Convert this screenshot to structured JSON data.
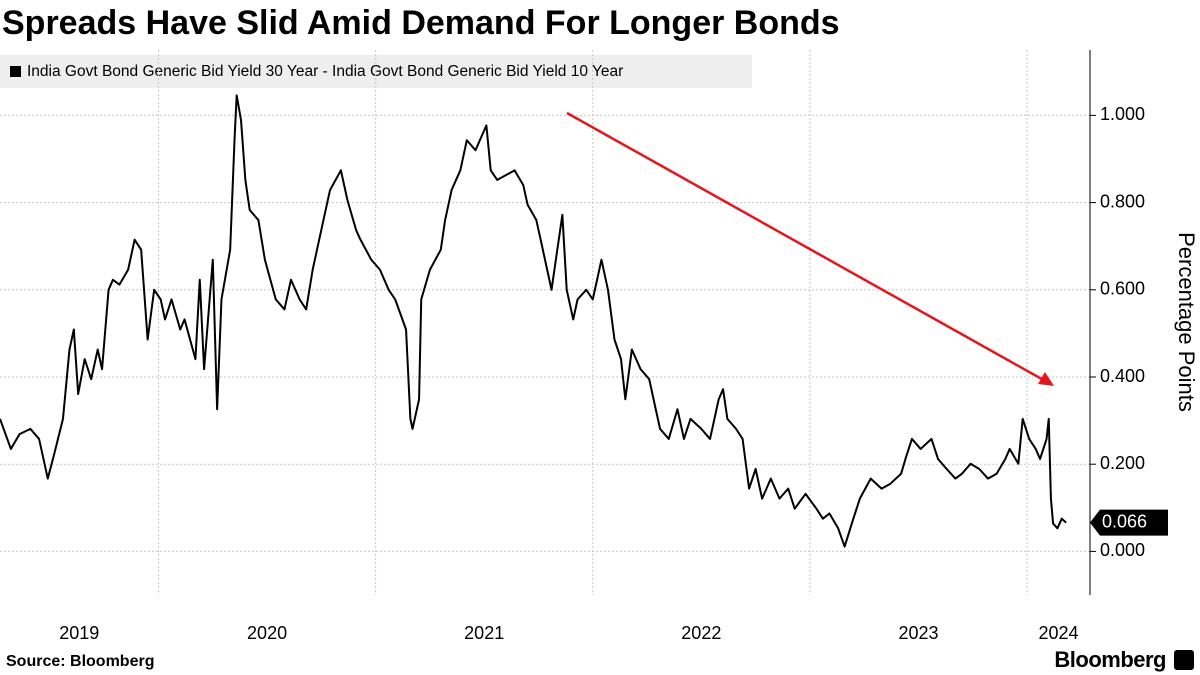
{
  "chart_data": {
    "type": "line",
    "title": "Spreads Have Slid Amid Demand For Longer Bonds",
    "y_label": "Percentage Points",
    "source": "Source: Bloomberg",
    "brand": "Bloomberg",
    "legend": "top-left",
    "grid": true,
    "xlim": [
      2019.27,
      2024.29
    ],
    "xticks": [
      2019,
      2020,
      2021,
      2022,
      2023,
      2024
    ],
    "ylim": [
      -0.1,
      1.15
    ],
    "yticks": [
      {
        "value": 0,
        "label": "0.000"
      },
      {
        "value": 0.2,
        "label": "0.200"
      },
      {
        "value": 0.4,
        "label": "0.400"
      },
      {
        "value": 0.6,
        "label": "0.600"
      },
      {
        "value": 0.8,
        "label": "0.800"
      },
      {
        "value": 1,
        "label": "1.000"
      }
    ],
    "x": [
      2019.27,
      2019.32,
      2019.36,
      2019.41,
      2019.45,
      2019.49,
      2019.52,
      2019.56,
      2019.59,
      2019.61,
      2019.63,
      2019.66,
      2019.69,
      2019.72,
      2019.74,
      2019.77,
      2019.79,
      2019.82,
      2019.86,
      2019.89,
      2019.92,
      2019.95,
      2019.98,
      2020.01,
      2020.03,
      2020.06,
      2020.1,
      2020.12,
      2020.17,
      2020.19,
      2020.21,
      2020.25,
      2020.27,
      2020.29,
      2020.33,
      2020.35,
      2020.36,
      2020.38,
      2020.4,
      2020.42,
      2020.46,
      2020.49,
      2020.54,
      2020.58,
      2020.61,
      2020.65,
      2020.68,
      2020.71,
      2020.74,
      2020.79,
      2020.84,
      2020.87,
      2020.91,
      2020.93,
      2020.98,
      2021.02,
      2021.06,
      2021.09,
      2021.14,
      2021.16,
      2021.17,
      2021.2,
      2021.21,
      2021.25,
      2021.3,
      2021.32,
      2021.35,
      2021.39,
      2021.42,
      2021.46,
      2021.48,
      2021.51,
      2021.53,
      2021.56,
      2021.6,
      2021.64,
      2021.68,
      2021.7,
      2021.74,
      2021.76,
      2021.8,
      2021.81,
      2021.83,
      2021.86,
      2021.88,
      2021.91,
      2021.93,
      2021.97,
      2022.0,
      2022.03,
      2022.04,
      2022.07,
      2022.1,
      2022.13,
      2022.15,
      2022.18,
      2022.22,
      2022.26,
      2022.29,
      2022.31,
      2022.35,
      2022.39,
      2022.42,
      2022.45,
      2022.5,
      2022.54,
      2022.58,
      2022.6,
      2022.62,
      2022.66,
      2022.69,
      2022.72,
      2022.75,
      2022.78,
      2022.82,
      2022.86,
      2022.9,
      2022.93,
      2022.98,
      2023.03,
      2023.06,
      2023.09,
      2023.13,
      2023.16,
      2023.2,
      2023.23,
      2023.28,
      2023.33,
      2023.37,
      2023.42,
      2023.44,
      2023.47,
      2023.51,
      2023.56,
      2023.59,
      2023.63,
      2023.67,
      2023.7,
      2023.74,
      2023.78,
      2023.82,
      2023.86,
      2023.9,
      2023.92,
      2023.96,
      2023.98,
      2024.01,
      2024.04,
      2024.06,
      2024.09,
      2024.1,
      2024.11,
      2024.12,
      2024.14,
      2024.16,
      2024.18
    ],
    "series": [
      {
        "name": "India Govt Bond Generic Bid Yield 30 Year - India Govt Bond Generic Bid Yield 10 Year",
        "color": "#000000",
        "values": [
          0.304,
          0.235,
          0.269,
          0.281,
          0.258,
          0.167,
          0.224,
          0.304,
          0.463,
          0.509,
          0.361,
          0.441,
          0.395,
          0.463,
          0.418,
          0.6,
          0.623,
          0.612,
          0.646,
          0.715,
          0.692,
          0.486,
          0.6,
          0.578,
          0.532,
          0.578,
          0.509,
          0.532,
          0.441,
          0.623,
          0.418,
          0.669,
          0.326,
          0.578,
          0.692,
          0.943,
          1.046,
          0.989,
          0.852,
          0.783,
          0.76,
          0.669,
          0.578,
          0.555,
          0.623,
          0.578,
          0.555,
          0.646,
          0.715,
          0.829,
          0.874,
          0.806,
          0.737,
          0.715,
          0.669,
          0.646,
          0.6,
          0.578,
          0.509,
          0.304,
          0.281,
          0.349,
          0.578,
          0.646,
          0.692,
          0.76,
          0.829,
          0.874,
          0.943,
          0.92,
          0.943,
          0.977,
          0.874,
          0.852,
          0.863,
          0.874,
          0.84,
          0.795,
          0.76,
          0.715,
          0.623,
          0.6,
          0.669,
          0.772,
          0.6,
          0.532,
          0.578,
          0.6,
          0.578,
          0.646,
          0.669,
          0.6,
          0.486,
          0.441,
          0.349,
          0.463,
          0.418,
          0.395,
          0.326,
          0.281,
          0.258,
          0.326,
          0.258,
          0.304,
          0.281,
          0.258,
          0.349,
          0.372,
          0.304,
          0.281,
          0.258,
          0.144,
          0.189,
          0.121,
          0.167,
          0.121,
          0.144,
          0.098,
          0.132,
          0.098,
          0.075,
          0.087,
          0.053,
          0.011,
          0.075,
          0.121,
          0.167,
          0.144,
          0.155,
          0.178,
          0.212,
          0.258,
          0.235,
          0.258,
          0.212,
          0.189,
          0.167,
          0.178,
          0.201,
          0.189,
          0.167,
          0.178,
          0.212,
          0.235,
          0.201,
          0.304,
          0.258,
          0.235,
          0.212,
          0.258,
          0.304,
          0.121,
          0.064,
          0.053,
          0.075,
          0.066
        ]
      }
    ]
  }
}
